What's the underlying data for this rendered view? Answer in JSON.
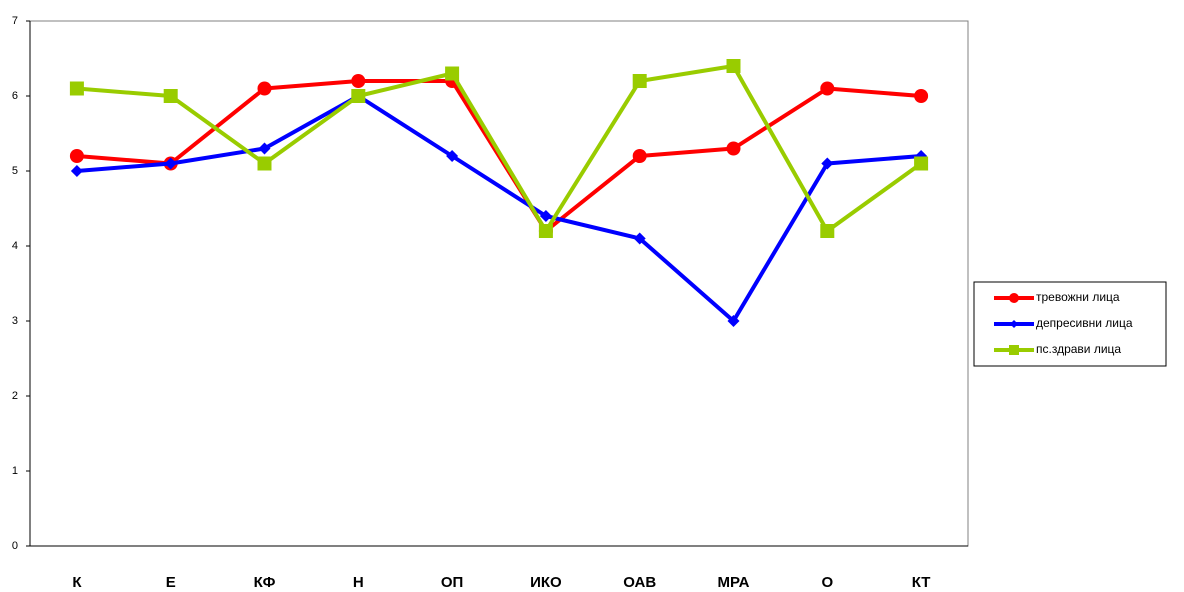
{
  "chart_data": {
    "type": "line",
    "categories": [
      "К",
      "Е",
      "КФ",
      "Н",
      "ОП",
      "ИКО",
      "ОАВ",
      "МРА",
      "О",
      "КТ"
    ],
    "series": [
      {
        "name": "тревожни лица",
        "color": "#ff0000",
        "marker": "circle",
        "values": [
          5.2,
          5.1,
          6.1,
          6.2,
          6.2,
          4.2,
          5.2,
          5.3,
          6.1,
          6.0
        ]
      },
      {
        "name": "депресивни лица",
        "color": "#0000ff",
        "marker": "diamond",
        "values": [
          5.0,
          5.1,
          5.3,
          6.0,
          5.2,
          4.4,
          4.1,
          3.0,
          5.1,
          5.2
        ]
      },
      {
        "name": "пс.здрави лица",
        "color": "#99cc00",
        "marker": "square",
        "values": [
          6.1,
          6.0,
          5.1,
          6.0,
          6.3,
          4.2,
          6.2,
          6.4,
          4.2,
          5.1
        ]
      }
    ],
    "ylim": [
      0,
      7
    ],
    "yticks": [
      0,
      1,
      2,
      3,
      4,
      5,
      6,
      7
    ],
    "grid": false,
    "legend": "right"
  }
}
